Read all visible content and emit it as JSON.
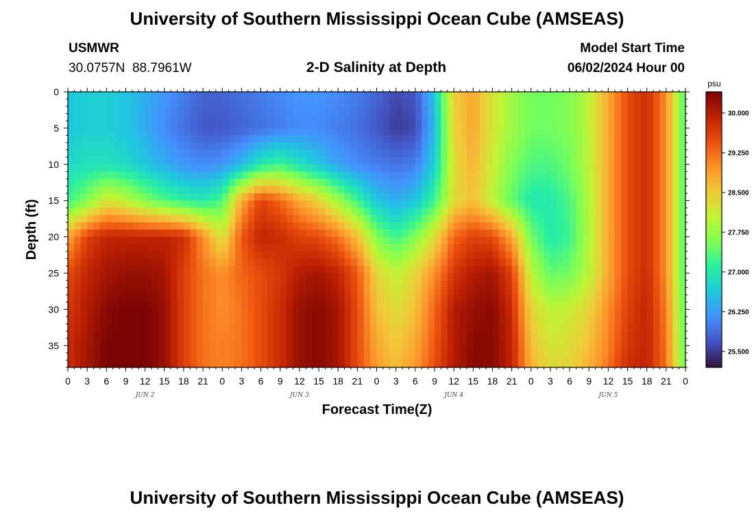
{
  "header": {
    "title_top": "University of Southern Mississippi Ocean Cube (AMSEAS)",
    "station_name": "USMWR",
    "coordinates": "30.0757N  88.7961W",
    "plot_title": "2-D Salinity at Depth",
    "model_start_label": "Model Start Time",
    "model_start_value": "06/02/2024 Hour 00",
    "title_bottom": "University of Southern Mississippi Ocean Cube (AMSEAS)"
  },
  "chart_data": {
    "type": "heatmap",
    "title": "2-D Salinity at Depth",
    "xlabel": "Forecast Time(Z)",
    "ylabel": "Depth (ft)",
    "x_unit": "hours since 06/02/2024 00Z",
    "xlim": [
      0,
      96
    ],
    "ylim": [
      0,
      38
    ],
    "y_inverted": true,
    "x_tick_labels": [
      "0",
      "3",
      "6",
      "9",
      "12",
      "15",
      "18",
      "21",
      "0",
      "3",
      "6",
      "9",
      "12",
      "15",
      "18",
      "21",
      "0",
      "3",
      "6",
      "9",
      "12",
      "15",
      "18",
      "21",
      "0",
      "3",
      "6",
      "9",
      "12",
      "15",
      "18",
      "21",
      "0"
    ],
    "y_ticks": [
      0,
      5,
      10,
      15,
      20,
      25,
      30,
      35
    ],
    "date_labels": [
      {
        "hour": 12,
        "text": "JUN 2"
      },
      {
        "hour": 36,
        "text": "JUN 3"
      },
      {
        "hour": 60,
        "text": "JUN 4"
      },
      {
        "hour": 84,
        "text": "JUN 5"
      }
    ],
    "colorbar": {
      "unit": "psu",
      "min": 25.2,
      "max": 30.4,
      "tick_labels": [
        "30.000",
        "29.250",
        "28.500",
        "27.750",
        "27.000",
        "26.250",
        "25.500"
      ],
      "tick_values": [
        30.0,
        29.25,
        28.5,
        27.75,
        27.0,
        26.25,
        25.5
      ],
      "colormap": [
        "#30123b",
        "#4454c4",
        "#4490fe",
        "#1fc8de",
        "#29efa2",
        "#7dff56",
        "#c1f334",
        "#f1ca3a",
        "#fe922a",
        "#ea4f0d",
        "#be2102",
        "#7a0403"
      ]
    },
    "depths_ft": [
      0,
      5,
      10,
      15,
      20,
      25,
      30,
      35,
      38
    ],
    "times_hr": [
      0,
      3,
      6,
      9,
      12,
      15,
      18,
      21,
      24,
      27,
      30,
      33,
      36,
      39,
      42,
      45,
      48,
      51,
      54,
      57,
      60,
      63,
      66,
      69,
      72,
      75,
      78,
      81,
      84,
      87,
      90,
      93,
      96
    ],
    "salinity_psu": [
      [
        26.6,
        26.7,
        26.7,
        26.6,
        26.4,
        26.2,
        26.0,
        25.8,
        25.8,
        25.9,
        26.0,
        26.1,
        26.2,
        26.2,
        26.1,
        26.0,
        25.8,
        25.6,
        25.7,
        26.6,
        28.5,
        28.8,
        28.2,
        27.8,
        27.5,
        27.5,
        27.6,
        28.0,
        28.8,
        29.5,
        29.8,
        29.0,
        27.2
      ],
      [
        26.6,
        26.7,
        26.7,
        26.6,
        26.4,
        26.1,
        25.9,
        25.7,
        25.7,
        25.8,
        25.9,
        26.0,
        26.1,
        26.1,
        26.0,
        25.9,
        25.7,
        25.5,
        25.6,
        26.5,
        28.4,
        28.8,
        28.2,
        27.8,
        27.5,
        27.5,
        27.6,
        28.0,
        28.8,
        29.5,
        29.8,
        29.0,
        27.2
      ],
      [
        26.8,
        26.9,
        26.9,
        26.8,
        26.6,
        26.4,
        26.2,
        26.1,
        26.2,
        26.5,
        27.0,
        27.2,
        26.9,
        26.6,
        26.3,
        26.1,
        26.0,
        25.9,
        26.0,
        26.7,
        28.3,
        28.7,
        28.1,
        27.6,
        27.3,
        27.3,
        27.5,
        28.0,
        28.8,
        29.5,
        29.8,
        29.0,
        27.2
      ],
      [
        27.2,
        27.6,
        28.2,
        28.0,
        27.6,
        27.3,
        27.1,
        27.0,
        27.3,
        28.8,
        29.6,
        29.3,
        28.8,
        28.4,
        27.8,
        27.2,
        26.6,
        26.4,
        26.6,
        27.2,
        28.3,
        28.6,
        28.0,
        27.4,
        27.0,
        27.0,
        27.3,
        27.9,
        28.8,
        29.5,
        29.8,
        29.0,
        27.2
      ],
      [
        28.8,
        29.6,
        29.9,
        29.9,
        29.9,
        29.9,
        29.8,
        29.0,
        28.2,
        29.4,
        29.9,
        29.8,
        29.6,
        29.5,
        29.2,
        28.6,
        27.6,
        27.2,
        27.6,
        28.3,
        29.3,
        29.6,
        29.5,
        28.8,
        27.5,
        27.0,
        27.2,
        27.9,
        28.8,
        29.5,
        29.8,
        29.0,
        27.2
      ],
      [
        29.5,
        29.9,
        30.1,
        30.2,
        30.2,
        30.1,
        29.6,
        29.2,
        29.0,
        29.3,
        29.5,
        29.7,
        30.0,
        30.1,
        29.9,
        29.4,
        28.4,
        28.0,
        28.4,
        29.0,
        29.7,
        30.0,
        30.1,
        29.6,
        28.0,
        27.4,
        27.5,
        28.0,
        28.8,
        29.5,
        29.8,
        29.0,
        27.2
      ],
      [
        29.7,
        30.0,
        30.3,
        30.4,
        30.4,
        30.2,
        29.6,
        29.2,
        29.0,
        29.2,
        29.5,
        29.8,
        30.2,
        30.3,
        30.1,
        29.5,
        28.6,
        28.3,
        28.6,
        29.3,
        30.0,
        30.2,
        30.3,
        29.8,
        28.4,
        28.0,
        28.1,
        28.4,
        29.0,
        29.6,
        29.9,
        29.1,
        27.3
      ],
      [
        29.8,
        30.1,
        30.4,
        30.4,
        30.4,
        30.2,
        29.6,
        29.2,
        29.1,
        29.2,
        29.5,
        29.8,
        30.2,
        30.3,
        30.1,
        29.5,
        28.8,
        28.5,
        28.8,
        29.4,
        30.0,
        30.3,
        30.3,
        29.9,
        28.6,
        28.2,
        28.3,
        28.6,
        29.1,
        29.7,
        29.9,
        29.2,
        27.3
      ],
      [
        29.8,
        30.1,
        30.4,
        30.4,
        30.4,
        30.2,
        29.6,
        29.2,
        29.1,
        29.2,
        29.5,
        29.8,
        30.2,
        30.3,
        30.1,
        29.5,
        28.9,
        28.6,
        28.9,
        29.5,
        30.0,
        30.3,
        30.3,
        29.9,
        28.7,
        28.3,
        28.4,
        28.7,
        29.2,
        29.8,
        29.9,
        29.2,
        27.4
      ]
    ]
  }
}
